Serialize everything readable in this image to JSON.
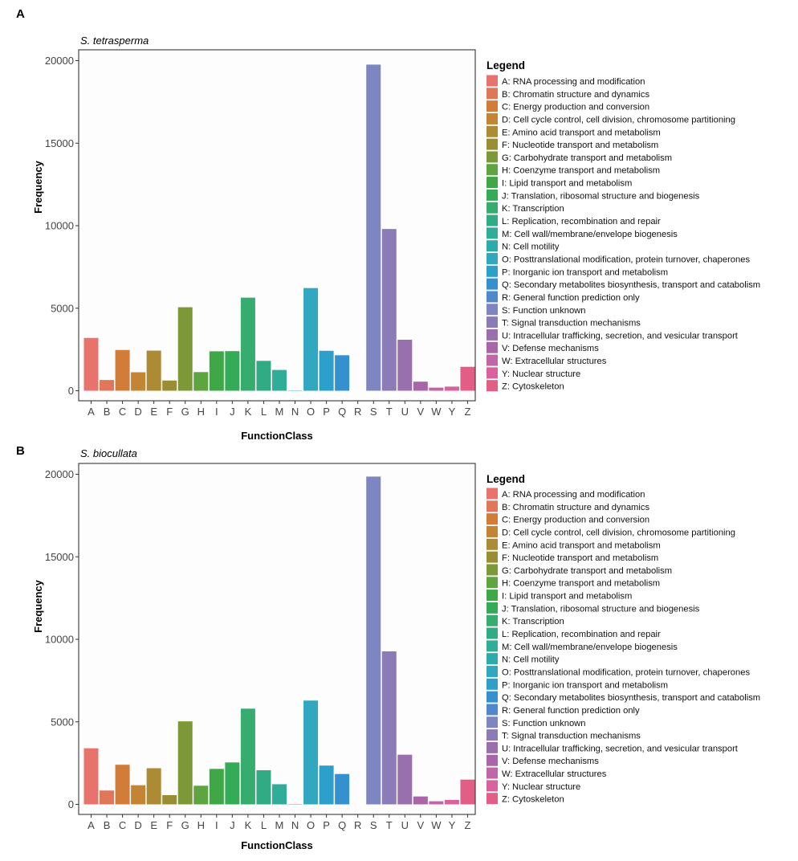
{
  "chart_data": [
    {
      "type": "bar",
      "panel": "A",
      "title": "S. tetrasperma",
      "xlabel": "FunctionClass",
      "ylabel": "Frequency",
      "ylim": [
        0,
        21000
      ],
      "yticks": [
        0,
        5000,
        10000,
        15000,
        20000
      ],
      "categories": [
        "A",
        "B",
        "C",
        "D",
        "E",
        "F",
        "G",
        "H",
        "I",
        "J",
        "K",
        "L",
        "M",
        "N",
        "O",
        "P",
        "Q",
        "R",
        "S",
        "T",
        "U",
        "V",
        "W",
        "Y",
        "Z"
      ],
      "values": [
        3200,
        650,
        2470,
        1120,
        2430,
        620,
        5060,
        1130,
        2390,
        2400,
        5640,
        1810,
        1260,
        20,
        6220,
        2420,
        2150,
        0,
        19760,
        9800,
        3090,
        550,
        190,
        250,
        1450
      ],
      "legend_title": "Legend",
      "legend": [
        "A: RNA processing and modification",
        "B: Chromatin structure and dynamics",
        "C: Energy production and conversion",
        "D: Cell cycle control, cell division, chromosome partitioning",
        "E: Amino acid transport and metabolism",
        "F: Nucleotide transport and metabolism",
        "G: Carbohydrate transport and metabolism",
        "H: Coenzyme transport and metabolism",
        "I: Lipid transport and metabolism",
        "J: Translation, ribosomal structure and biogenesis",
        "K: Transcription",
        "L: Replication, recombination and repair",
        "M: Cell wall/membrane/envelope biogenesis",
        "N: Cell motility",
        "O: Posttranslational modification, protein turnover, chaperones",
        "P: Inorganic ion transport and metabolism",
        "Q: Secondary metabolites biosynthesis, transport and catabolism",
        "R: General function prediction only",
        "S: Function unknown",
        "T: Signal transduction mechanisms",
        "U: Intracellular trafficking, secretion, and vesicular transport",
        "V: Defense mechanisms",
        "W: Extracellular structures",
        "Y: Nuclear structure",
        "Z: Cytoskeleton"
      ],
      "grid": false,
      "legend_position": "right"
    },
    {
      "type": "bar",
      "panel": "B",
      "title": "S. biocullata",
      "xlabel": "FunctionClass",
      "ylabel": "Frequency",
      "ylim": [
        0,
        21000
      ],
      "yticks": [
        0,
        5000,
        10000,
        15000,
        20000
      ],
      "categories": [
        "A",
        "B",
        "C",
        "D",
        "E",
        "F",
        "G",
        "H",
        "I",
        "J",
        "K",
        "L",
        "M",
        "N",
        "O",
        "P",
        "Q",
        "R",
        "S",
        "T",
        "U",
        "V",
        "W",
        "Y",
        "Z"
      ],
      "values": [
        3400,
        840,
        2400,
        1160,
        2190,
        560,
        5030,
        1130,
        2150,
        2540,
        5800,
        2070,
        1220,
        20,
        6290,
        2350,
        1840,
        0,
        19860,
        9270,
        3010,
        480,
        190,
        270,
        1500
      ],
      "legend_title": "Legend",
      "legend": [
        "A: RNA processing and modification",
        "B: Chromatin structure and dynamics",
        "C: Energy production and conversion",
        "D: Cell cycle control, cell division, chromosome partitioning",
        "E: Amino acid transport and metabolism",
        "F: Nucleotide transport and metabolism",
        "G: Carbohydrate transport and metabolism",
        "H: Coenzyme transport and metabolism",
        "I: Lipid transport and metabolism",
        "J: Translation, ribosomal structure and biogenesis",
        "K: Transcription",
        "L: Replication, recombination and repair",
        "M: Cell wall/membrane/envelope biogenesis",
        "N: Cell motility",
        "O: Posttranslational modification, protein turnover, chaperones",
        "P: Inorganic ion transport and metabolism",
        "Q: Secondary metabolites biosynthesis, transport and catabolism",
        "R: General function prediction only",
        "S: Function unknown",
        "T: Signal transduction mechanisms",
        "U: Intracellular trafficking, secretion, and vesicular transport",
        "V: Defense mechanisms",
        "W: Extracellular structures",
        "Y: Nuclear structure",
        "Z: Cytoskeleton"
      ],
      "grid": false,
      "legend_position": "right"
    }
  ],
  "colors": [
    "#E8736C",
    "#E0765A",
    "#D27C3A",
    "#C38533",
    "#AD8A34",
    "#9A8E34",
    "#7D9836",
    "#5EA440",
    "#3EA846",
    "#34AB56",
    "#36AC6E",
    "#30AB83",
    "#2FAD98",
    "#2BABAC",
    "#31A8C0",
    "#2C9FCB",
    "#3490CF",
    "#5088CC",
    "#7D86C0",
    "#8B7BB7",
    "#9A6FAE",
    "#A865A8",
    "#C066A6",
    "#D8619E",
    "#E35E86"
  ]
}
